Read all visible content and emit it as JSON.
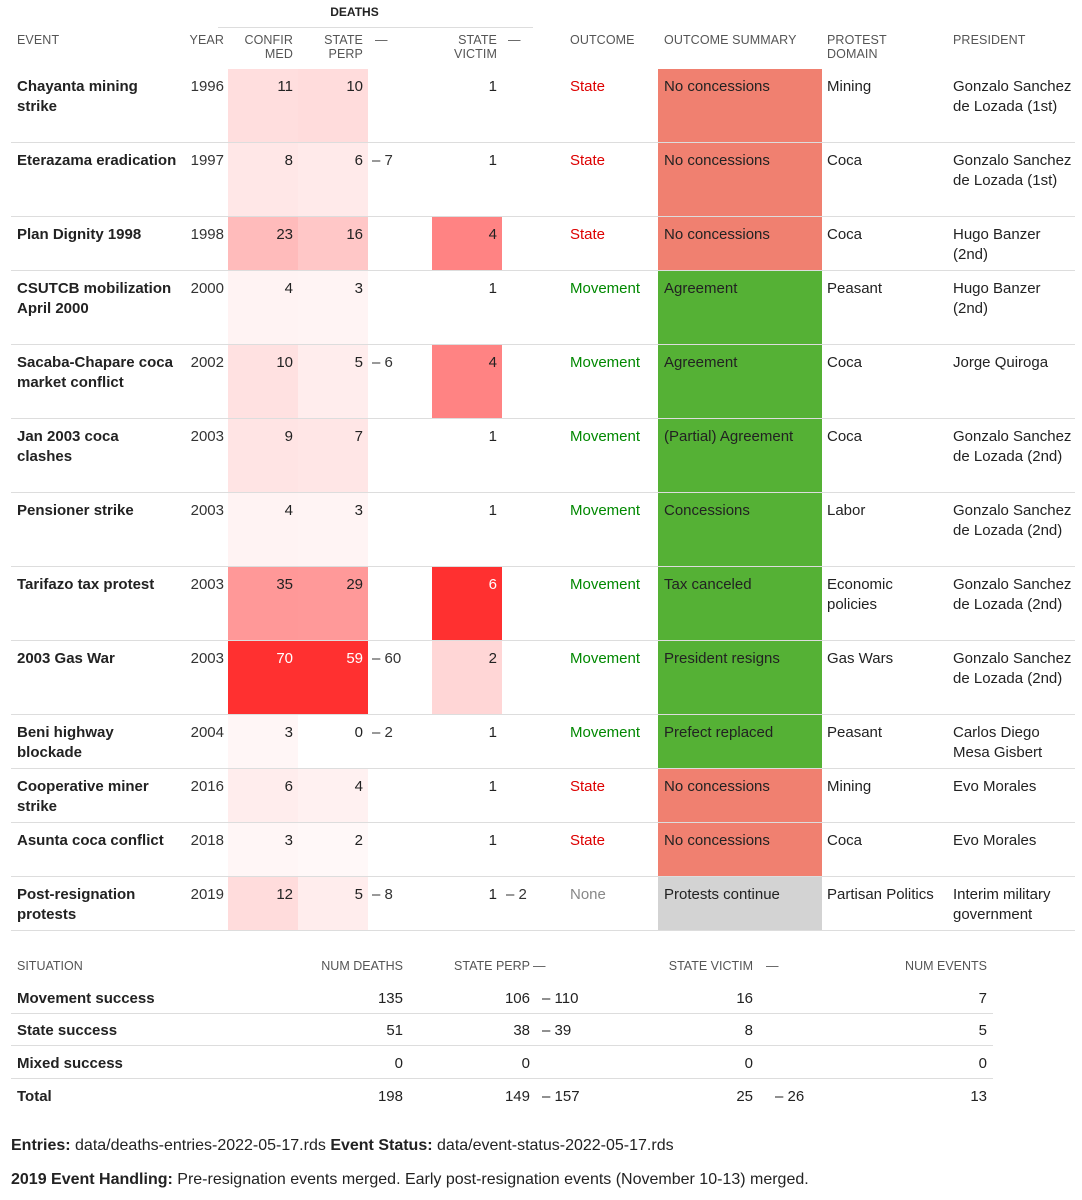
{
  "header": {
    "deaths_group": "DEATHS",
    "event": "EVENT",
    "year": "YEAR",
    "confirmed_l1": "CONFIR",
    "confirmed_l2": "MED",
    "state_perp_l1": "STATE",
    "state_perp_l2": "PERP",
    "state_perp_range": "—",
    "state_victim_l1": "STATE",
    "state_victim_l2": "VICTIM",
    "state_victim_range": "—",
    "outcome": "OUTCOME",
    "outcome_summary": "OUTCOME SUMMARY",
    "protest_domain_l1": "PROTEST",
    "protest_domain_l2": "DOMAIN",
    "president": "PRESIDENT"
  },
  "colors": {
    "state": "#dd0000",
    "movement": "#008800",
    "none": "#888888",
    "no_concessions_bg": "#f08070",
    "success_bg": "#55b135",
    "continue_bg": "#d3d3d3"
  },
  "rows": [
    {
      "event": "Chayanta mining strike",
      "year": "1996",
      "confirmed": 11,
      "state_perp": 10,
      "state_perp_range": "",
      "state_victim": 1,
      "state_victim_range": "",
      "outcome": "State",
      "outcome_summary": "No concessions",
      "protest_domain": "Mining",
      "president": "Gonzalo Sanchez de Lozada (1st)"
    },
    {
      "event": "Eterazama eradication",
      "year": "1997",
      "confirmed": 8,
      "state_perp": 6,
      "state_perp_range": "– 7",
      "state_victim": 1,
      "state_victim_range": "",
      "outcome": "State",
      "outcome_summary": "No concessions",
      "protest_domain": "Coca",
      "president": "Gonzalo Sanchez de Lozada (1st)"
    },
    {
      "event": "Plan Dignity 1998",
      "year": "1998",
      "confirmed": 23,
      "state_perp": 16,
      "state_perp_range": "",
      "state_victim": 4,
      "state_victim_range": "",
      "outcome": "State",
      "outcome_summary": "No concessions",
      "protest_domain": "Coca",
      "president": "Hugo Banzer (2nd)"
    },
    {
      "event": "CSUTCB mobilization April 2000",
      "year": "2000",
      "confirmed": 4,
      "state_perp": 3,
      "state_perp_range": "",
      "state_victim": 1,
      "state_victim_range": "",
      "outcome": "Movement",
      "outcome_summary": "Agreement",
      "protest_domain": "Peasant",
      "president": "Hugo Banzer (2nd)"
    },
    {
      "event": "Sacaba-Chapare coca market conflict",
      "year": "2002",
      "confirmed": 10,
      "state_perp": 5,
      "state_perp_range": "– 6",
      "state_victim": 4,
      "state_victim_range": "",
      "outcome": "Movement",
      "outcome_summary": "Agreement",
      "protest_domain": "Coca",
      "president": "Jorge Quiroga"
    },
    {
      "event": "Jan 2003 coca clashes",
      "year": "2003",
      "confirmed": 9,
      "state_perp": 7,
      "state_perp_range": "",
      "state_victim": 1,
      "state_victim_range": "",
      "outcome": "Movement",
      "outcome_summary": "(Partial) Agreement",
      "protest_domain": "Coca",
      "president": "Gonzalo Sanchez de Lozada (2nd)"
    },
    {
      "event": "Pensioner strike",
      "year": "2003",
      "confirmed": 4,
      "state_perp": 3,
      "state_perp_range": "",
      "state_victim": 1,
      "state_victim_range": "",
      "outcome": "Movement",
      "outcome_summary": "Concessions",
      "protest_domain": "Labor",
      "president": "Gonzalo Sanchez de Lozada (2nd)"
    },
    {
      "event": "Tarifazo tax protest",
      "year": "2003",
      "confirmed": 35,
      "state_perp": 29,
      "state_perp_range": "",
      "state_victim": 6,
      "state_victim_range": "",
      "outcome": "Movement",
      "outcome_summary": "Tax canceled",
      "protest_domain": "Economic policies",
      "president": "Gonzalo Sanchez de Lozada (2nd)"
    },
    {
      "event": "2003 Gas War",
      "year": "2003",
      "confirmed": 70,
      "state_perp": 59,
      "state_perp_range": "– 60",
      "state_victim": 2,
      "state_victim_range": "",
      "outcome": "Movement",
      "outcome_summary": "President resigns",
      "protest_domain": "Gas Wars",
      "president": "Gonzalo Sanchez de Lozada (2nd)"
    },
    {
      "event": "Beni highway blockade",
      "year": "2004",
      "confirmed": 3,
      "state_perp": 0,
      "state_perp_range": "– 2",
      "state_victim": 1,
      "state_victim_range": "",
      "outcome": "Movement",
      "outcome_summary": "Prefect replaced",
      "protest_domain": "Peasant",
      "president": "Carlos Diego Mesa Gisbert"
    },
    {
      "event": "Cooperative miner strike",
      "year": "2016",
      "confirmed": 6,
      "state_perp": 4,
      "state_perp_range": "",
      "state_victim": 1,
      "state_victim_range": "",
      "outcome": "State",
      "outcome_summary": "No concessions",
      "protest_domain": "Mining",
      "president": "Evo Morales"
    },
    {
      "event": "Asunta coca conﬂict",
      "year": "2018",
      "confirmed": 3,
      "state_perp": 2,
      "state_perp_range": "",
      "state_victim": 1,
      "state_victim_range": "",
      "outcome": "State",
      "outcome_summary": "No concessions",
      "protest_domain": "Coca",
      "president": "Evo Morales"
    },
    {
      "event": "Post-resignation protests",
      "year": "2019",
      "confirmed": 12,
      "state_perp": 5,
      "state_perp_range": "– 8",
      "state_victim": 1,
      "state_victim_range": "– 2",
      "outcome": "None",
      "outcome_summary": "Protests continue",
      "protest_domain": "Partisan Politics",
      "president": "Interim military government"
    }
  ],
  "summary": {
    "header": {
      "situation": "SITUATION",
      "num_deaths": "NUM DEATHS",
      "state_perp": "STATE PERP",
      "state_perp_range": "—",
      "state_victim": "STATE VICTIM",
      "state_victim_range": "—",
      "num_events": "NUM EVENTS"
    },
    "rows": [
      {
        "situation": "Movement success",
        "num_deaths": "135",
        "state_perp": "106",
        "state_perp_range": "– 110",
        "state_victim": "16",
        "state_victim_range": "",
        "num_events": "7"
      },
      {
        "situation": "State success",
        "num_deaths": "51",
        "state_perp": "38",
        "state_perp_range": "– 39",
        "state_victim": "8",
        "state_victim_range": "",
        "num_events": "5"
      },
      {
        "situation": "Mixed success",
        "num_deaths": "0",
        "state_perp": "0",
        "state_perp_range": "",
        "state_victim": "0",
        "state_victim_range": "",
        "num_events": "0"
      },
      {
        "situation": "Total",
        "num_deaths": "198",
        "state_perp": "149",
        "state_perp_range": "– 157",
        "state_victim": "25",
        "state_victim_range": "– 26",
        "num_events": "13"
      }
    ]
  },
  "footnotes": {
    "entries_label": "Entries:",
    "entries_value": "data/deaths-entries-2022-05-17.rds",
    "status_label": "Event Status:",
    "status_value": "data/event-status-2022-05-17.rds",
    "handling_label": "2019 Event Handling:",
    "handling_value": "Pre-resignation events merged. Early post-resignation events (November 10-13) merged."
  }
}
